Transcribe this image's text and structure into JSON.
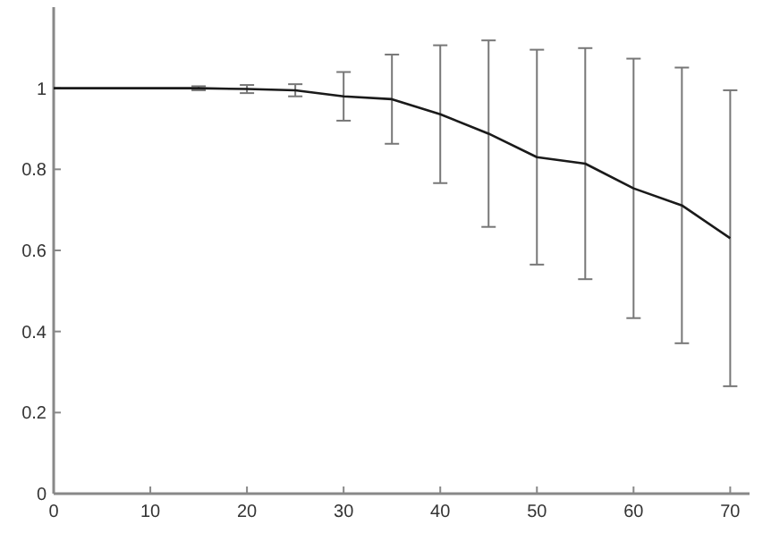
{
  "chart_data": {
    "type": "line",
    "x": [
      0,
      5,
      10,
      15,
      20,
      25,
      30,
      35,
      40,
      45,
      50,
      55,
      60,
      65,
      70
    ],
    "series": [
      {
        "color": "#1a1a1a",
        "values": [
          1.0,
          1.0,
          1.0,
          1.0,
          0.998,
          0.995,
          0.98,
          0.973,
          0.936,
          0.888,
          0.83,
          0.814,
          0.753,
          0.711,
          0.63
        ],
        "errors": [
          null,
          null,
          null,
          0.005,
          0.01,
          0.015,
          0.06,
          0.11,
          0.17,
          0.23,
          0.265,
          0.285,
          0.32,
          0.34,
          0.365
        ]
      }
    ],
    "xlim": [
      0,
      72
    ],
    "xticks": [
      0,
      10,
      20,
      30,
      40,
      50,
      60,
      70
    ],
    "ylim": [
      0,
      1.2
    ],
    "yticks": [
      0,
      0.2,
      0.4,
      0.6,
      0.8,
      1
    ],
    "grid": false,
    "marker": "none",
    "line_style": "solid"
  }
}
